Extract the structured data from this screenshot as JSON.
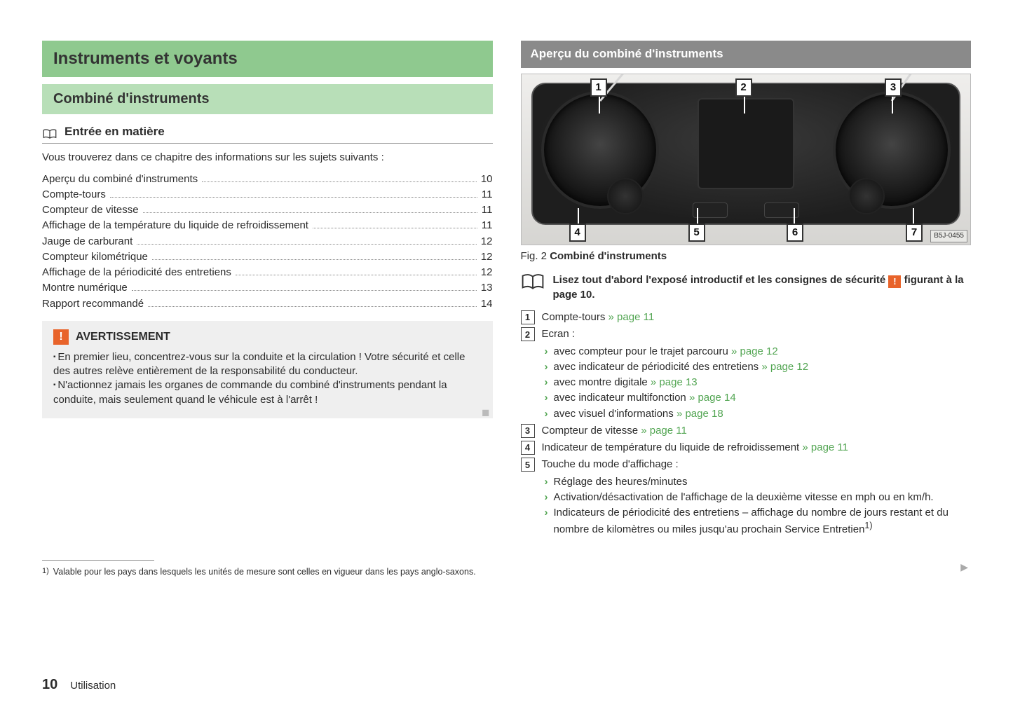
{
  "page": {
    "number": "10",
    "section": "Utilisation"
  },
  "left": {
    "title": "Instruments et voyants",
    "subtitle": "Combiné d'instruments",
    "section_head": "Entrée en matière",
    "intro": "Vous trouverez dans ce chapitre des informations sur les sujets suivants :",
    "toc": [
      {
        "label": "Aperçu du combiné d'instruments",
        "page": "10"
      },
      {
        "label": "Compte-tours",
        "page": "11"
      },
      {
        "label": "Compteur de vitesse",
        "page": "11"
      },
      {
        "label": "Affichage de la température du liquide de refroidissement",
        "page": "11"
      },
      {
        "label": "Jauge de carburant",
        "page": "12"
      },
      {
        "label": "Compteur kilométrique",
        "page": "12"
      },
      {
        "label": "Affichage de la périodicité des entretiens",
        "page": "12"
      },
      {
        "label": "Montre numérique",
        "page": "13"
      },
      {
        "label": "Rapport recommandé",
        "page": "14"
      }
    ],
    "warn_title": "AVERTISSEMENT",
    "warn_items": [
      "En premier lieu, concentrez-vous sur la conduite et la circulation ! Votre sécurité et celle des autres relève entièrement de la responsabilité du conducteur.",
      "N'actionnez jamais les organes de commande du combiné d'instruments pendant la conduite, mais seulement quand le véhicule est à l'arrêt !"
    ]
  },
  "right": {
    "heading": "Aperçu du combiné d'instruments",
    "fig_label": "Fig. 2",
    "fig_title": "Combiné d'instruments",
    "img_code": "B5J-0455",
    "callouts_top": [
      "1",
      "2",
      "3"
    ],
    "callouts_bottom": [
      "4",
      "5",
      "6",
      "7"
    ],
    "read_first_a": "Lisez tout d'abord l'exposé introductif et les consignes de sécurité ",
    "read_first_b": " figurant à la page 10.",
    "legend": [
      {
        "n": "1",
        "text": "Compte-tours ",
        "link": "» page 11"
      },
      {
        "n": "2",
        "text": "Ecran :",
        "sub": [
          {
            "t": "avec compteur pour le trajet parcouru ",
            "link": "» page 12"
          },
          {
            "t": "avec indicateur de périodicité des entretiens ",
            "link": "» page 12"
          },
          {
            "t": "avec montre digitale ",
            "link": "» page 13"
          },
          {
            "t": "avec indicateur multifonction ",
            "link": "» page 14"
          },
          {
            "t": "avec visuel d'informations ",
            "link": "» page 18"
          }
        ]
      },
      {
        "n": "3",
        "text": "Compteur de vitesse ",
        "link": "» page 11"
      },
      {
        "n": "4",
        "text": "Indicateur de température du liquide de refroidissement ",
        "link": "» page 11"
      },
      {
        "n": "5",
        "text": "Touche du mode d'affichage :",
        "sub": [
          {
            "t": "Réglage des heures/minutes"
          },
          {
            "t": "Activation/désactivation de l'affichage de la deuxième vitesse en mph ou en km/h."
          },
          {
            "t": "Indicateurs de périodicité des entretiens – affichage du nombre de jours restant et du nombre de kilomètres ou miles jusqu'au prochain Service Entretien",
            "sup": "1)"
          }
        ]
      }
    ]
  },
  "footnote": {
    "mark": "1)",
    "text": "Valable pour les pays dans lesquels les unités de mesure sont celles en vigueur dans les pays anglo-saxons."
  },
  "colors": {
    "green_dark": "#8fc98f",
    "green_light": "#b8dfb8",
    "link": "#52a552",
    "orange": "#e8632a",
    "grey_bar": "#8a8a8a",
    "box_bg": "#efefef"
  }
}
